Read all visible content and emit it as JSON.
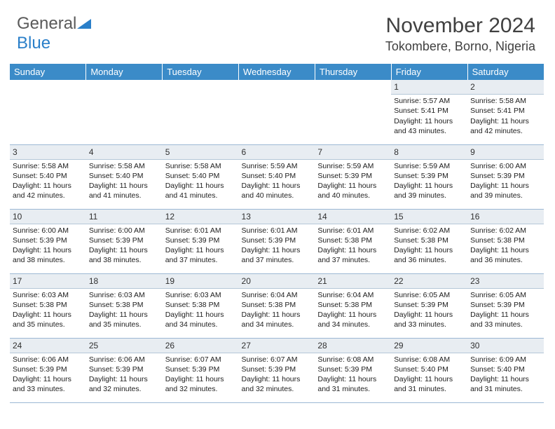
{
  "logo": {
    "text1": "General",
    "text2": "Blue"
  },
  "title": "November 2024",
  "location": "Tokombere, Borno, Nigeria",
  "colors": {
    "header_bg": "#3b8bc8",
    "header_text": "#ffffff",
    "daynum_bg": "#e8edf2",
    "border": "#9cb8d4",
    "title_color": "#404040",
    "logo_gray": "#5a5a5a",
    "logo_blue": "#2a7fc9"
  },
  "weekdays": [
    "Sunday",
    "Monday",
    "Tuesday",
    "Wednesday",
    "Thursday",
    "Friday",
    "Saturday"
  ],
  "grid": [
    [
      null,
      null,
      null,
      null,
      null,
      {
        "n": "1",
        "sr": "5:57 AM",
        "ss": "5:41 PM",
        "dl": "11 hours and 43 minutes."
      },
      {
        "n": "2",
        "sr": "5:58 AM",
        "ss": "5:41 PM",
        "dl": "11 hours and 42 minutes."
      }
    ],
    [
      {
        "n": "3",
        "sr": "5:58 AM",
        "ss": "5:40 PM",
        "dl": "11 hours and 42 minutes."
      },
      {
        "n": "4",
        "sr": "5:58 AM",
        "ss": "5:40 PM",
        "dl": "11 hours and 41 minutes."
      },
      {
        "n": "5",
        "sr": "5:58 AM",
        "ss": "5:40 PM",
        "dl": "11 hours and 41 minutes."
      },
      {
        "n": "6",
        "sr": "5:59 AM",
        "ss": "5:40 PM",
        "dl": "11 hours and 40 minutes."
      },
      {
        "n": "7",
        "sr": "5:59 AM",
        "ss": "5:39 PM",
        "dl": "11 hours and 40 minutes."
      },
      {
        "n": "8",
        "sr": "5:59 AM",
        "ss": "5:39 PM",
        "dl": "11 hours and 39 minutes."
      },
      {
        "n": "9",
        "sr": "6:00 AM",
        "ss": "5:39 PM",
        "dl": "11 hours and 39 minutes."
      }
    ],
    [
      {
        "n": "10",
        "sr": "6:00 AM",
        "ss": "5:39 PM",
        "dl": "11 hours and 38 minutes."
      },
      {
        "n": "11",
        "sr": "6:00 AM",
        "ss": "5:39 PM",
        "dl": "11 hours and 38 minutes."
      },
      {
        "n": "12",
        "sr": "6:01 AM",
        "ss": "5:39 PM",
        "dl": "11 hours and 37 minutes."
      },
      {
        "n": "13",
        "sr": "6:01 AM",
        "ss": "5:39 PM",
        "dl": "11 hours and 37 minutes."
      },
      {
        "n": "14",
        "sr": "6:01 AM",
        "ss": "5:38 PM",
        "dl": "11 hours and 37 minutes."
      },
      {
        "n": "15",
        "sr": "6:02 AM",
        "ss": "5:38 PM",
        "dl": "11 hours and 36 minutes."
      },
      {
        "n": "16",
        "sr": "6:02 AM",
        "ss": "5:38 PM",
        "dl": "11 hours and 36 minutes."
      }
    ],
    [
      {
        "n": "17",
        "sr": "6:03 AM",
        "ss": "5:38 PM",
        "dl": "11 hours and 35 minutes."
      },
      {
        "n": "18",
        "sr": "6:03 AM",
        "ss": "5:38 PM",
        "dl": "11 hours and 35 minutes."
      },
      {
        "n": "19",
        "sr": "6:03 AM",
        "ss": "5:38 PM",
        "dl": "11 hours and 34 minutes."
      },
      {
        "n": "20",
        "sr": "6:04 AM",
        "ss": "5:38 PM",
        "dl": "11 hours and 34 minutes."
      },
      {
        "n": "21",
        "sr": "6:04 AM",
        "ss": "5:38 PM",
        "dl": "11 hours and 34 minutes."
      },
      {
        "n": "22",
        "sr": "6:05 AM",
        "ss": "5:39 PM",
        "dl": "11 hours and 33 minutes."
      },
      {
        "n": "23",
        "sr": "6:05 AM",
        "ss": "5:39 PM",
        "dl": "11 hours and 33 minutes."
      }
    ],
    [
      {
        "n": "24",
        "sr": "6:06 AM",
        "ss": "5:39 PM",
        "dl": "11 hours and 33 minutes."
      },
      {
        "n": "25",
        "sr": "6:06 AM",
        "ss": "5:39 PM",
        "dl": "11 hours and 32 minutes."
      },
      {
        "n": "26",
        "sr": "6:07 AM",
        "ss": "5:39 PM",
        "dl": "11 hours and 32 minutes."
      },
      {
        "n": "27",
        "sr": "6:07 AM",
        "ss": "5:39 PM",
        "dl": "11 hours and 32 minutes."
      },
      {
        "n": "28",
        "sr": "6:08 AM",
        "ss": "5:39 PM",
        "dl": "11 hours and 31 minutes."
      },
      {
        "n": "29",
        "sr": "6:08 AM",
        "ss": "5:40 PM",
        "dl": "11 hours and 31 minutes."
      },
      {
        "n": "30",
        "sr": "6:09 AM",
        "ss": "5:40 PM",
        "dl": "11 hours and 31 minutes."
      }
    ]
  ],
  "labels": {
    "sunrise": "Sunrise:",
    "sunset": "Sunset:",
    "daylight": "Daylight:"
  }
}
